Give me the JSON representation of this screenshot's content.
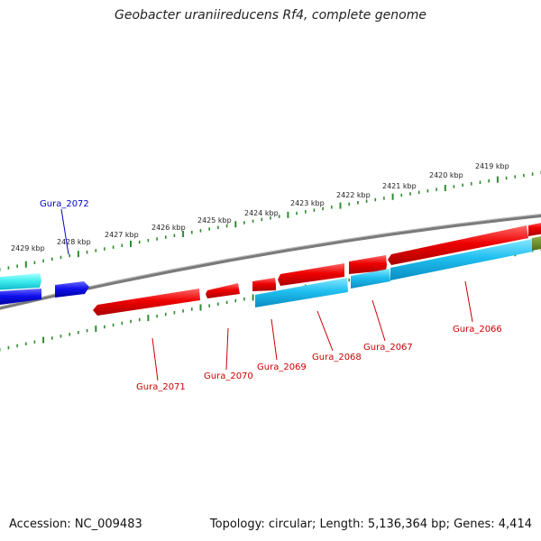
{
  "title": "Geobacter uraniireducens Rf4, complete genome",
  "footer": {
    "accession": "Accession: NC_009483",
    "summary": "Topology: circular; Length: 5,136,364 bp; Genes: 4,414"
  },
  "scale_labels": [
    "2429 kbp",
    "2428 kbp",
    "2427 kbp",
    "2426 kbp",
    "2425 kbp",
    "2424 kbp",
    "2423 kbp",
    "2422 kbp",
    "2421 kbp",
    "2420 kbp",
    "2419 kbp"
  ],
  "gene_labels": {
    "top": [
      "Gura_2072"
    ],
    "bottom": [
      "Gura_2071",
      "Gura_2070",
      "Gura_2069",
      "Gura_2068",
      "Gura_2067",
      "Gura_2066"
    ]
  },
  "colors": {
    "backbone": "#888888",
    "tick": "#2e8b2e",
    "red_gene": "#dd0000",
    "blue_gene": "#0000dd",
    "cyan_gene": "#22c8ee",
    "light_cyan_gene": "#44eeee",
    "olive_gene": "#6b8e23",
    "label_red": "#cc0000",
    "label_blue": "#0000cc"
  }
}
